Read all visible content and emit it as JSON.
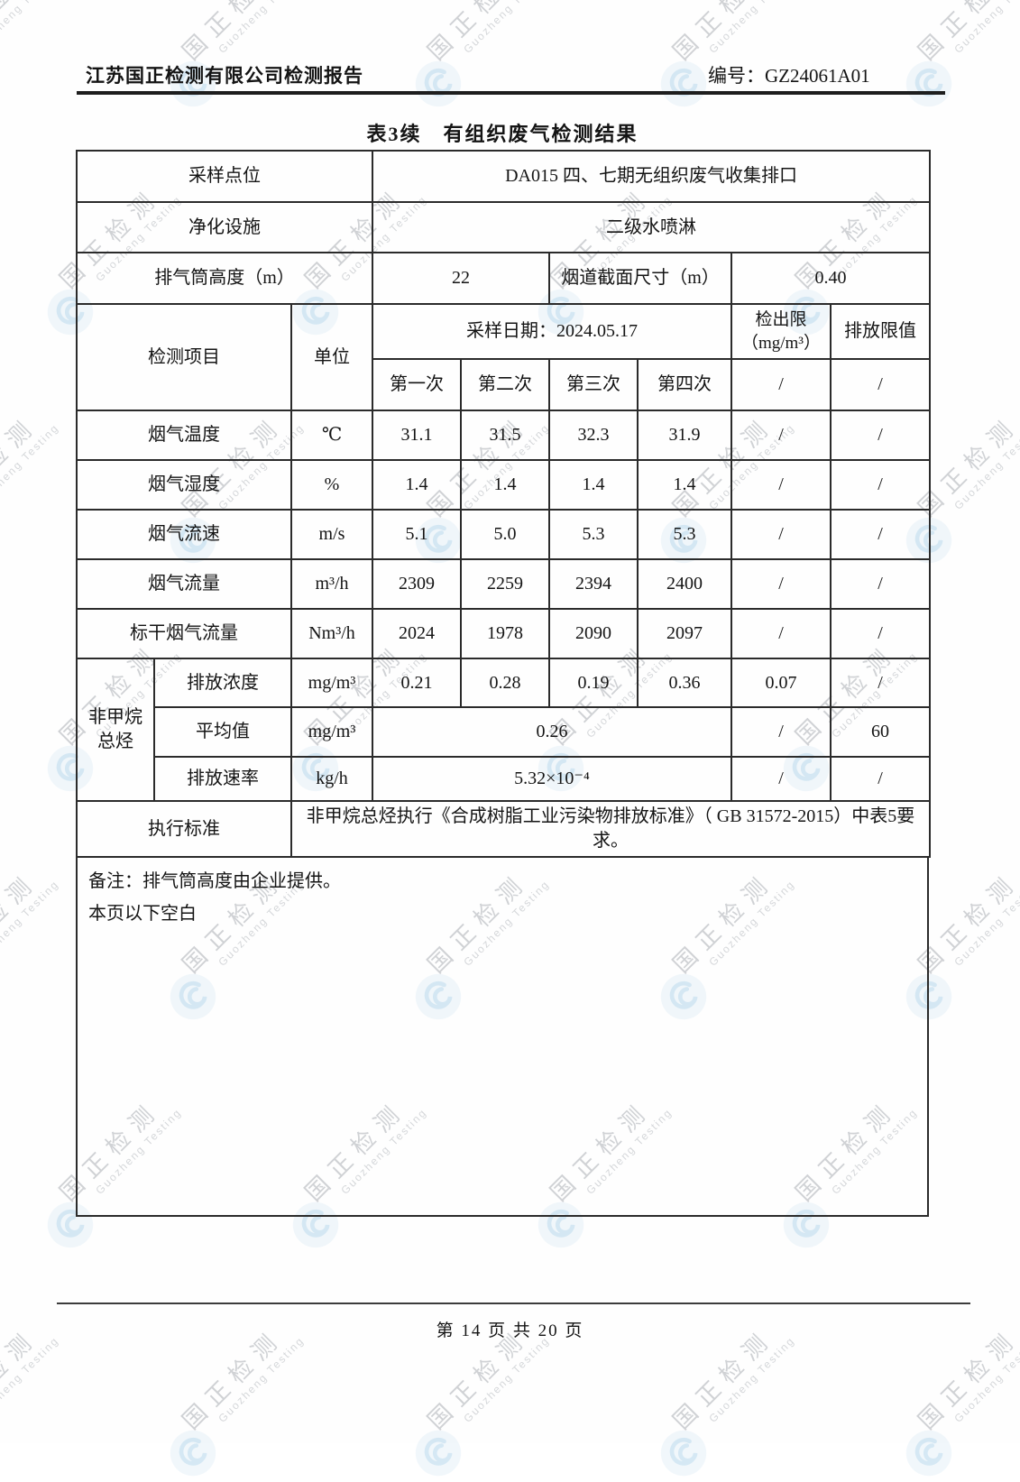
{
  "document": {
    "header": {
      "company_report_title": "江苏国正检测有限公司检测报告",
      "report_no": "编号：GZ24061A01"
    },
    "table_title": "表3续　有组织废气检测结果",
    "footer": {
      "page_info": "第 14 页 共 20 页"
    }
  },
  "watermark": {
    "text_cn": "国正检测",
    "text_en": "Guozheng Testing"
  },
  "report_table": {
    "info_rows": [
      {
        "label": "采样点位",
        "value": "DA015 四、七期无组织废气收集排口"
      },
      {
        "label": "净化设施",
        "value": "二级水喷淋"
      },
      {
        "label": "排气筒高度（m）",
        "value": "22",
        "label2": "烟道截面尺寸（m）",
        "value2": "0.40"
      }
    ],
    "header": {
      "item_label": "检测项目",
      "unit_label": "单位",
      "sample_date_label": "采样日期：2024.05.17",
      "runs": [
        "第一次",
        "第二次",
        "第三次",
        "第四次"
      ],
      "detection_limit_label": "检出限\n（mg/m³）",
      "emission_limit_label": "排放限值",
      "detection_limit_run_value": "/",
      "emission_limit_run_value": "/"
    },
    "rows": [
      {
        "item": "烟气温度",
        "unit": "℃",
        "values": [
          "31.1",
          "31.5",
          "32.3",
          "31.9"
        ],
        "detection_limit": "/",
        "emission_limit": "/"
      },
      {
        "item": "烟气湿度",
        "unit": "%",
        "values": [
          "1.4",
          "1.4",
          "1.4",
          "1.4"
        ],
        "detection_limit": "/",
        "emission_limit": "/"
      },
      {
        "item": "烟气流速",
        "unit": "m/s",
        "values": [
          "5.1",
          "5.0",
          "5.3",
          "5.3"
        ],
        "detection_limit": "/",
        "emission_limit": "/"
      },
      {
        "item": "烟气流量",
        "unit": "m³/h",
        "values": [
          "2309",
          "2259",
          "2394",
          "2400"
        ],
        "detection_limit": "/",
        "emission_limit": "/"
      },
      {
        "item": "标干烟气流量",
        "unit": "Nm³/h",
        "values": [
          "2024",
          "1978",
          "2090",
          "2097"
        ],
        "detection_limit": "/",
        "emission_limit": "/"
      }
    ],
    "nmhc_group": {
      "group_label": "非甲烷\n总烃",
      "concentration": {
        "item": "排放浓度",
        "unit": "mg/m³",
        "values": [
          "0.21",
          "0.28",
          "0.19",
          "0.36"
        ],
        "detection_limit": "0.07",
        "emission_limit": "/"
      },
      "average": {
        "item": "平均值",
        "unit": "mg/m³",
        "value": "0.26",
        "detection_limit": "/",
        "emission_limit": "60"
      },
      "rate": {
        "item": "排放速率",
        "unit": "kg/h",
        "value": "5.32×10⁻⁴",
        "detection_limit": "/",
        "emission_limit": "/"
      }
    },
    "standard_row": {
      "label": "执行标准",
      "value": "非甲烷总烃执行《合成树脂工业污染物排放标准》（ GB 31572-2015）中表5要求。"
    },
    "notes": {
      "line1": "备注：排气筒高度由企业提供。",
      "line2": "本页以下空白"
    }
  }
}
